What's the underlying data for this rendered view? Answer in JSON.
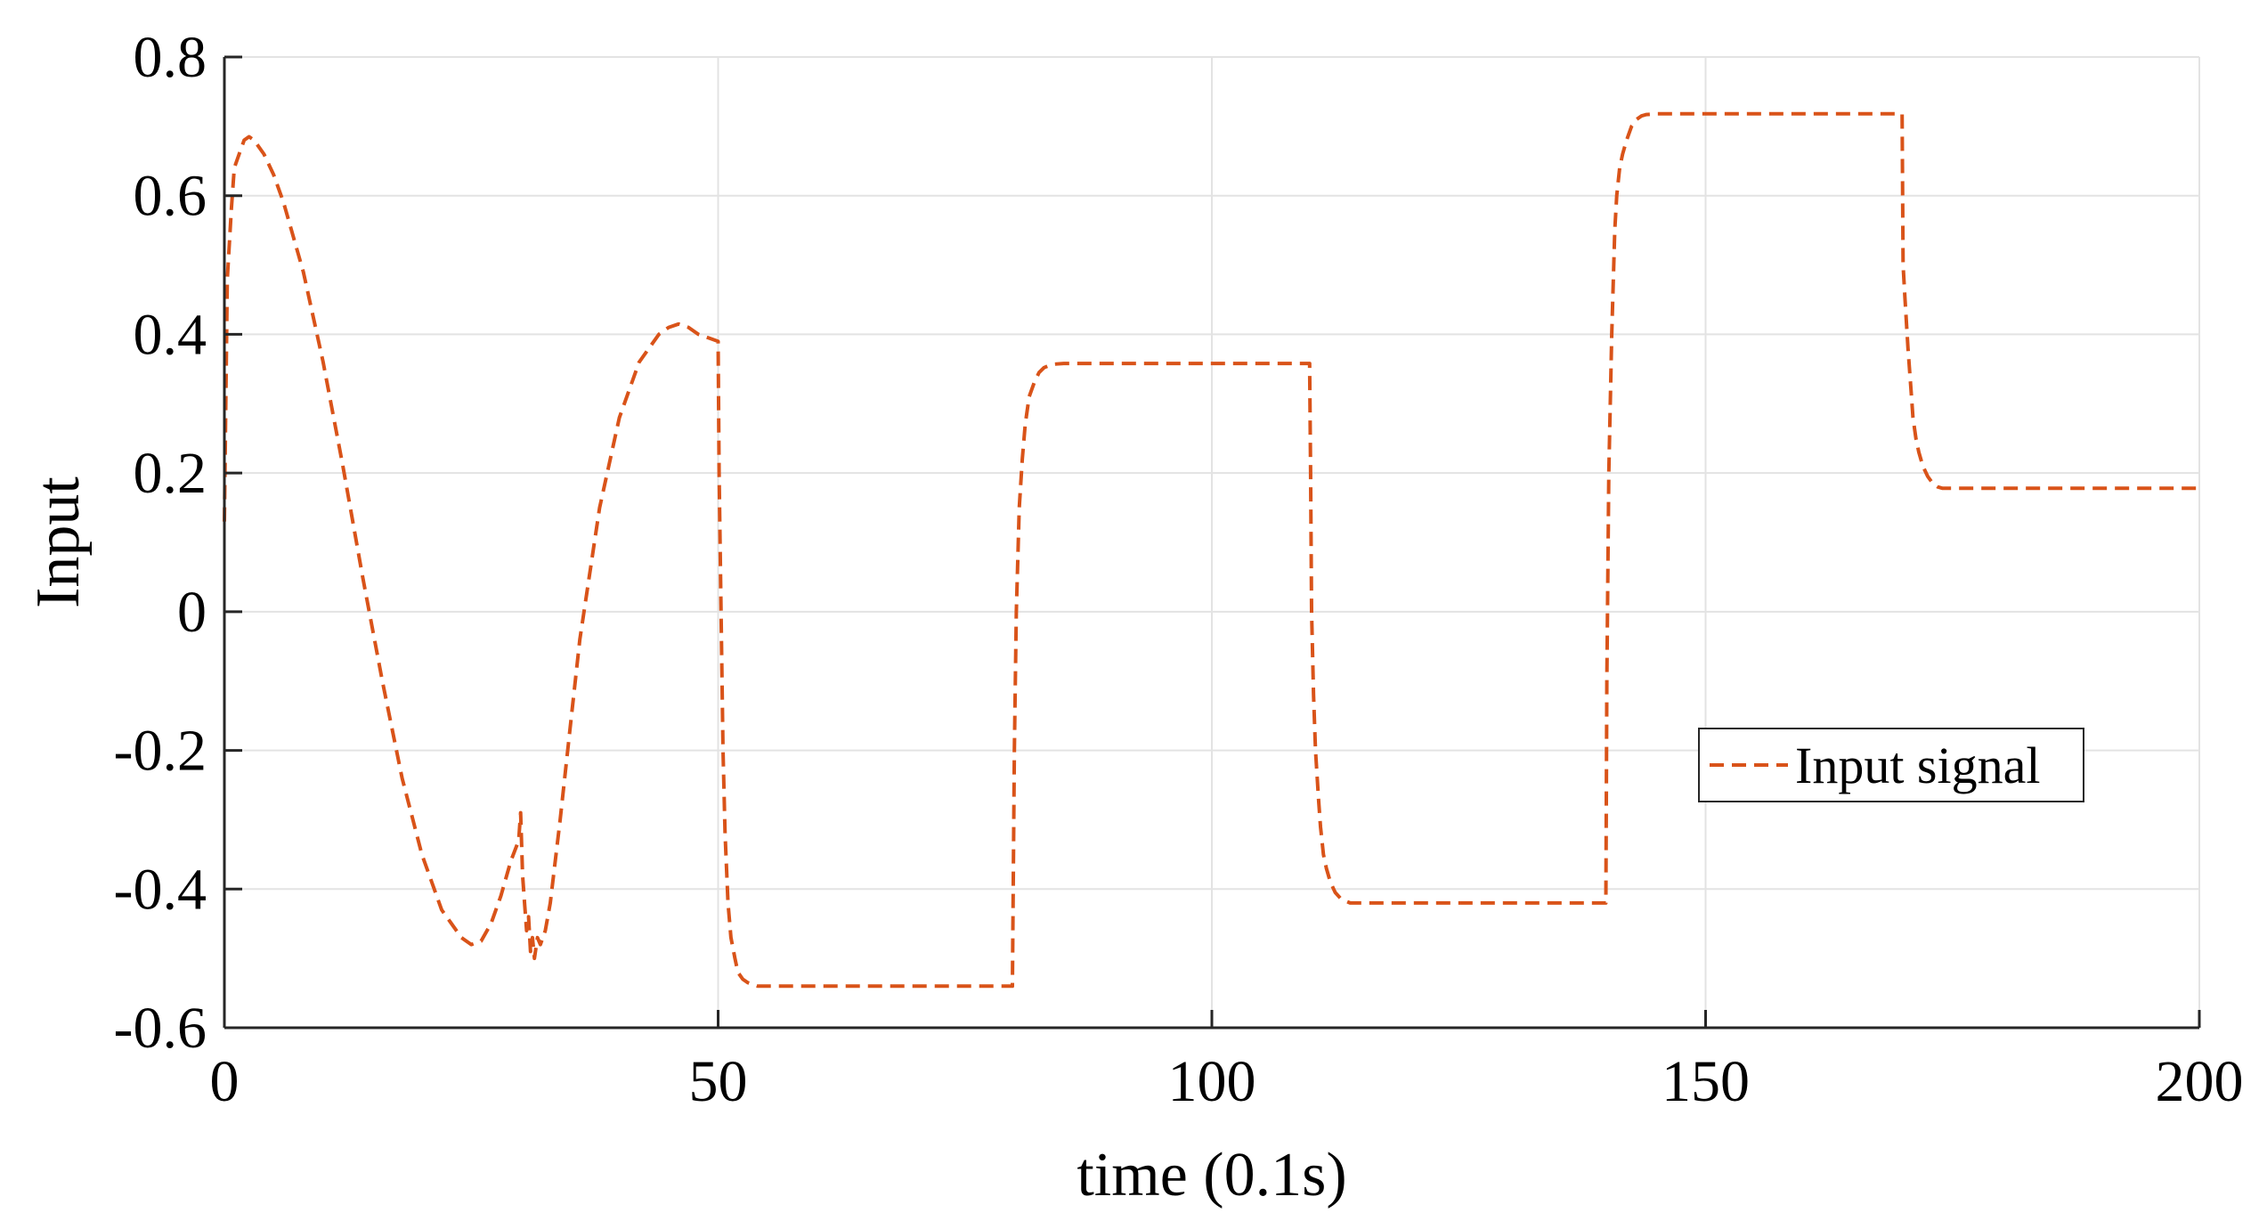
{
  "chart_data": {
    "type": "line",
    "xlabel": "time (0.1s)",
    "ylabel": "Input",
    "xlim": [
      0,
      200
    ],
    "ylim": [
      -0.6,
      0.8
    ],
    "x_ticks": [
      0,
      50,
      100,
      150,
      200
    ],
    "x_tick_labels": [
      "0",
      "50",
      "100",
      "150",
      "200"
    ],
    "y_ticks": [
      -0.6,
      -0.4,
      -0.2,
      0,
      0.2,
      0.4,
      0.6,
      0.8
    ],
    "y_tick_labels": [
      "-0.6",
      "-0.4",
      "-0.2",
      "0",
      "0.2",
      "0.4",
      "0.6",
      "0.8"
    ],
    "grid": true,
    "legend_position": "lower-right",
    "series": [
      {
        "name": "Input signal",
        "color": "#d95319",
        "line_style": "dashed",
        "x": [
          0,
          0.3,
          0.7,
          1.0,
          1.5,
          2.0,
          2.5,
          3.0,
          4.0,
          5.0,
          6.0,
          8.0,
          10.0,
          12.0,
          14.0,
          16.0,
          18.0,
          20.0,
          22.0,
          24.0,
          25.0,
          26.0,
          27.0,
          28.0,
          29.0,
          29.8,
          30.0,
          30.2,
          30.4,
          30.6,
          30.8,
          31.0,
          31.2,
          31.4,
          31.7,
          32.0,
          32.5,
          33.0,
          34.0,
          35.0,
          36.0,
          38.0,
          40.0,
          42.0,
          44.0,
          45.0,
          46.0,
          47.0,
          48.0,
          49.0,
          50.0,
          50.1,
          50.3,
          50.5,
          50.7,
          51.0,
          51.3,
          51.7,
          52.0,
          52.5,
          53.0,
          54.0,
          55.0,
          57.0,
          60.0,
          65.0,
          70.0,
          75.0,
          79.8,
          80.0,
          80.2,
          80.5,
          80.8,
          81.1,
          81.5,
          82.0,
          82.5,
          83.0,
          83.5,
          84.0,
          85.0,
          87.0,
          90.0,
          95.0,
          100.0,
          105.0,
          109.9,
          110.0,
          110.1,
          110.3,
          110.5,
          110.8,
          111.0,
          111.3,
          111.6,
          112.0,
          112.5,
          113.0,
          113.5,
          114.0,
          115.0,
          117.0,
          120.0,
          125.0,
          130.0,
          135.0,
          139.9,
          140.0,
          140.2,
          140.5,
          140.8,
          141.0,
          141.3,
          141.6,
          142.0,
          142.5,
          143.0,
          143.5,
          144.0,
          145.0,
          147.0,
          150.0,
          155.0,
          160.0,
          165.0,
          169.9,
          170.0,
          170.2,
          170.5,
          170.8,
          171.0,
          171.3,
          171.6,
          172.0,
          172.5,
          173.0,
          173.5,
          174.0,
          175.0,
          177.0,
          180.0,
          185.0,
          190.0,
          195.0,
          200.0
        ],
        "y": [
          0.13,
          0.48,
          0.58,
          0.64,
          0.66,
          0.68,
          0.685,
          0.68,
          0.66,
          0.63,
          0.59,
          0.49,
          0.36,
          0.21,
          0.05,
          -0.1,
          -0.24,
          -0.35,
          -0.43,
          -0.47,
          -0.48,
          -0.475,
          -0.45,
          -0.41,
          -0.36,
          -0.33,
          -0.29,
          -0.38,
          -0.42,
          -0.46,
          -0.44,
          -0.49,
          -0.47,
          -0.5,
          -0.47,
          -0.48,
          -0.46,
          -0.42,
          -0.3,
          -0.17,
          -0.04,
          0.15,
          0.28,
          0.36,
          0.4,
          0.41,
          0.415,
          0.41,
          0.4,
          0.395,
          0.39,
          0.2,
          0.0,
          -0.2,
          -0.32,
          -0.42,
          -0.47,
          -0.5,
          -0.52,
          -0.53,
          -0.535,
          -0.54,
          -0.54,
          -0.54,
          -0.54,
          -0.54,
          -0.54,
          -0.54,
          -0.54,
          -0.2,
          0.0,
          0.15,
          0.22,
          0.27,
          0.31,
          0.33,
          0.345,
          0.352,
          0.355,
          0.357,
          0.358,
          0.358,
          0.358,
          0.358,
          0.358,
          0.358,
          0.358,
          0.2,
          0.0,
          -0.12,
          -0.2,
          -0.27,
          -0.31,
          -0.35,
          -0.37,
          -0.39,
          -0.405,
          -0.413,
          -0.417,
          -0.42,
          -0.42,
          -0.42,
          -0.42,
          -0.42,
          -0.42,
          -0.42,
          -0.42,
          -0.1,
          0.2,
          0.4,
          0.55,
          0.6,
          0.64,
          0.66,
          0.68,
          0.7,
          0.71,
          0.715,
          0.717,
          0.718,
          0.718,
          0.718,
          0.718,
          0.718,
          0.718,
          0.718,
          0.5,
          0.45,
          0.38,
          0.32,
          0.28,
          0.25,
          0.23,
          0.21,
          0.195,
          0.185,
          0.18,
          0.178,
          0.178,
          0.178,
          0.178,
          0.178,
          0.178,
          0.178,
          0.178
        ]
      }
    ]
  }
}
